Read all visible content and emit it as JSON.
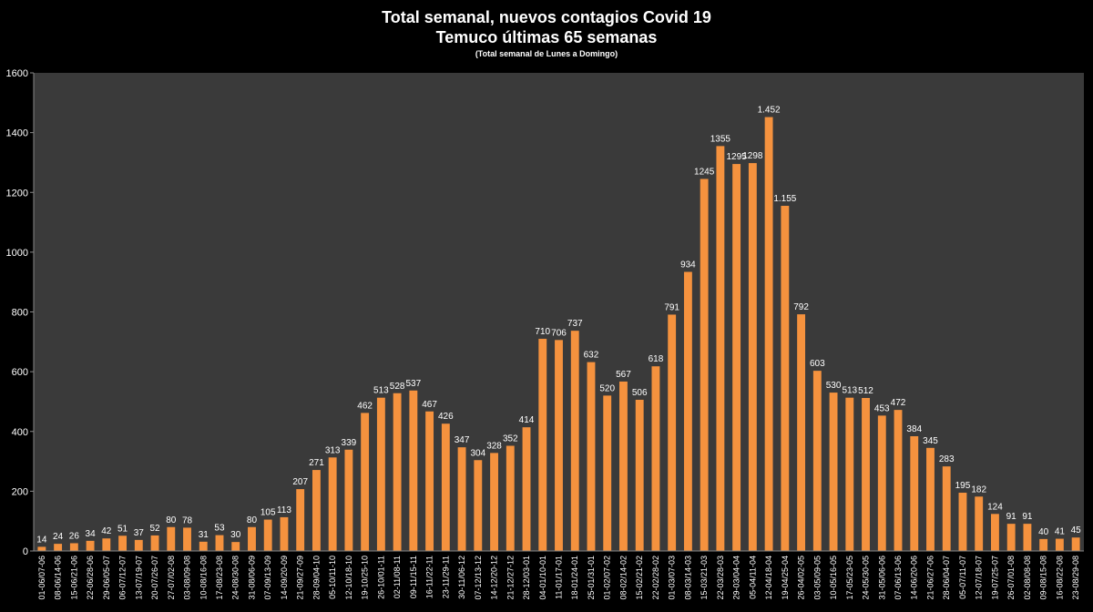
{
  "chart_data": {
    "type": "bar",
    "title": "Total semanal, nuevos contagios Covid 19",
    "subtitle": "Temuco últimas 65 semanas",
    "note": "(Total semanal de Lunes a Domingo)",
    "ylim": [
      0,
      1600
    ],
    "yticks": [
      "0",
      "200",
      "400",
      "600",
      "800",
      "1000",
      "1200",
      "1400",
      "1600"
    ],
    "grid": false,
    "bar_color": "#f5923e",
    "plot_background": "#3a3a3a",
    "categories": [
      "01-06/07-06",
      "08-06/14-06",
      "15-06/21-06",
      "22-06/28-06",
      "29-06/05-07",
      "06-07/12-07",
      "13-07/19-07",
      "20-07/26-07",
      "27-07/02-08",
      "03-08/09-08",
      "10-08/16-08",
      "17-08/23-08",
      "24-08/30-08",
      "31-08/06-09",
      "07-09/13-09",
      "14-09/20-09",
      "21-09/27-09",
      "28-09/04-10",
      "05-10/11-10",
      "12-10/18-10",
      "19-10/25-10",
      "26-10/01-11",
      "02-11/08-11",
      "09-11/15-11",
      "16-11/22-11",
      "23-11/29-11",
      "30-11/06-12",
      "07-12/13-12",
      "14-12/20-12",
      "21-12/27-12",
      "28-12/03-01",
      "04-01/10-01",
      "11-01/17-01",
      "18-01/24-01",
      "25-01/31-01",
      "01-02/07-02",
      "08-02/14-02",
      "15-02/21-02",
      "22-02/28-02",
      "01-03/07-03",
      "08-03/14-03",
      "15-03/21-03",
      "22-03/28-03",
      "29-03/04-04",
      "05-04/11-04",
      "12-04/18-04",
      "19-04/25-04",
      "26-04/02-05",
      "03-05/09-05",
      "10-05/16-05",
      "17-05/23-05",
      "24-05/30-05",
      "31-05/06-06",
      "07-06/13-06",
      "14-06/20-06",
      "21-06/27-06",
      "28-06/04-07",
      "05-07/11-07",
      "12-07/18-07",
      "19-07/25-07",
      "26-07/01-08",
      "02-08/08-08",
      "09-08/15-08",
      "16-08/22-08",
      "23-08/29-08"
    ],
    "values": [
      14,
      24,
      26,
      34,
      42,
      51,
      37,
      52,
      80,
      78,
      31,
      53,
      30,
      80,
      105,
      113,
      207,
      271,
      313,
      339,
      462,
      513,
      528,
      537,
      467,
      426,
      347,
      304,
      328,
      352,
      414,
      710,
      706,
      737,
      632,
      520,
      567,
      506,
      618,
      791,
      934,
      1245,
      1355,
      1295,
      1298,
      1452,
      1155,
      792,
      603,
      530,
      513,
      512,
      453,
      472,
      384,
      345,
      283,
      195,
      182,
      124,
      91,
      91,
      40,
      41,
      45
    ],
    "data_labels": [
      "14",
      "24",
      "26",
      "34",
      "42",
      "51",
      "37",
      "52",
      "80",
      "78",
      "31",
      "53",
      "30",
      "80",
      "105",
      "113",
      "207",
      "271",
      "313",
      "339",
      "462",
      "513",
      "528",
      "537",
      "467",
      "426",
      "347",
      "304",
      "328",
      "352",
      "414",
      "710",
      "706",
      "737",
      "632",
      "520",
      "567",
      "506",
      "618",
      "791",
      "934",
      "1245",
      "1355",
      "1295",
      "1298",
      "1.452",
      "1.155",
      "792",
      "603",
      "530",
      "513",
      "512",
      "453",
      "472",
      "384",
      "345",
      "283",
      "195",
      "182",
      "124",
      "91",
      "91",
      "40",
      "41",
      "45"
    ]
  }
}
